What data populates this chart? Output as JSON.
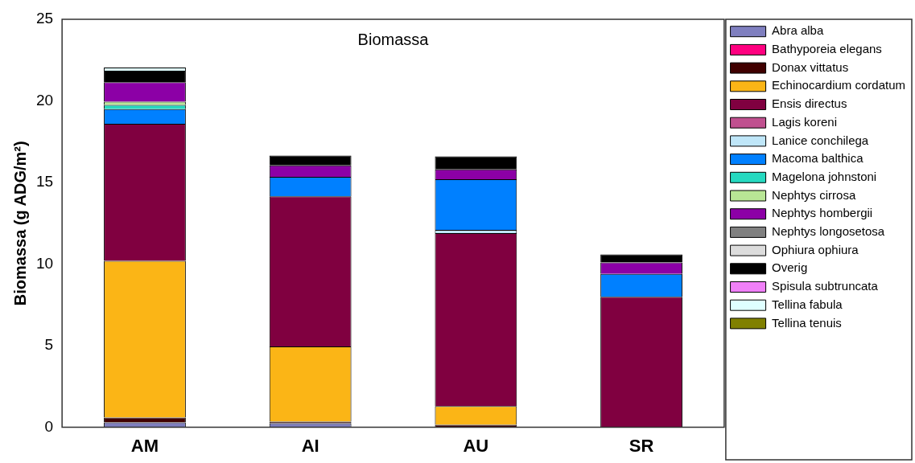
{
  "chart_data": {
    "type": "bar",
    "title": "Biomassa",
    "ylabel": "Biomassa (g ADG/m²)",
    "stacked": true,
    "legend": "right",
    "grid": false,
    "categories": [
      "AM",
      "AI",
      "AU",
      "SR"
    ],
    "ylim": [
      0,
      25
    ],
    "yticks": [
      0,
      5,
      10,
      15,
      20,
      25
    ],
    "series": [
      {
        "name": "Abra alba",
        "color": "#7f7fbf",
        "values": [
          0.3,
          0.25,
          0,
          0
        ]
      },
      {
        "name": "Bathyporeia elegans",
        "color": "#ff0080",
        "values": [
          0,
          0,
          0,
          0
        ]
      },
      {
        "name": "Donax vittatus",
        "color": "#400000",
        "values": [
          0.3,
          0.1,
          0.15,
          0
        ]
      },
      {
        "name": "Echinocardium cordatum",
        "color": "#fbb516",
        "values": [
          9.6,
          4.6,
          1.15,
          0
        ]
      },
      {
        "name": "Ensis directus",
        "color": "#800040",
        "values": [
          8.4,
          9.2,
          10.6,
          8
        ]
      },
      {
        "name": "Lagis koreni",
        "color": "#c0508f",
        "values": [
          0,
          0,
          0,
          0
        ]
      },
      {
        "name": "Lanice conchilega",
        "color": "#bfe6f8",
        "values": [
          0,
          0,
          0.2,
          0
        ]
      },
      {
        "name": "Macoma balthica",
        "color": "#0080ff",
        "values": [
          0.9,
          1.2,
          3.1,
          1.4
        ]
      },
      {
        "name": "Magelona johnstoni",
        "color": "#26d9c0",
        "values": [
          0.25,
          0,
          0,
          0
        ]
      },
      {
        "name": "Nephtys cirrosa",
        "color": "#b8e695",
        "values": [
          0.2,
          0,
          0,
          0
        ]
      },
      {
        "name": "Nephtys hombergii",
        "color": "#8c00a6",
        "values": [
          1.2,
          0.7,
          0.6,
          0.7
        ]
      },
      {
        "name": "Nephtys longosetosa",
        "color": "#808080",
        "values": [
          0,
          0,
          0,
          0
        ]
      },
      {
        "name": "Ophiura ophiura",
        "color": "#dcdcdc",
        "values": [
          0,
          0,
          0,
          0
        ]
      },
      {
        "name": "Overig",
        "color": "#000000",
        "values": [
          0.7,
          0.6,
          0.8,
          0.5
        ]
      },
      {
        "name": "Spisula subtruncata",
        "color": "#f080f8",
        "values": [
          0,
          0,
          0,
          0
        ]
      },
      {
        "name": "Tellina fabula",
        "color": "#dfffff",
        "values": [
          0.2,
          0,
          0,
          0
        ]
      },
      {
        "name": "Tellina tenuis",
        "color": "#808000",
        "values": [
          0,
          0,
          0,
          0
        ]
      }
    ]
  }
}
